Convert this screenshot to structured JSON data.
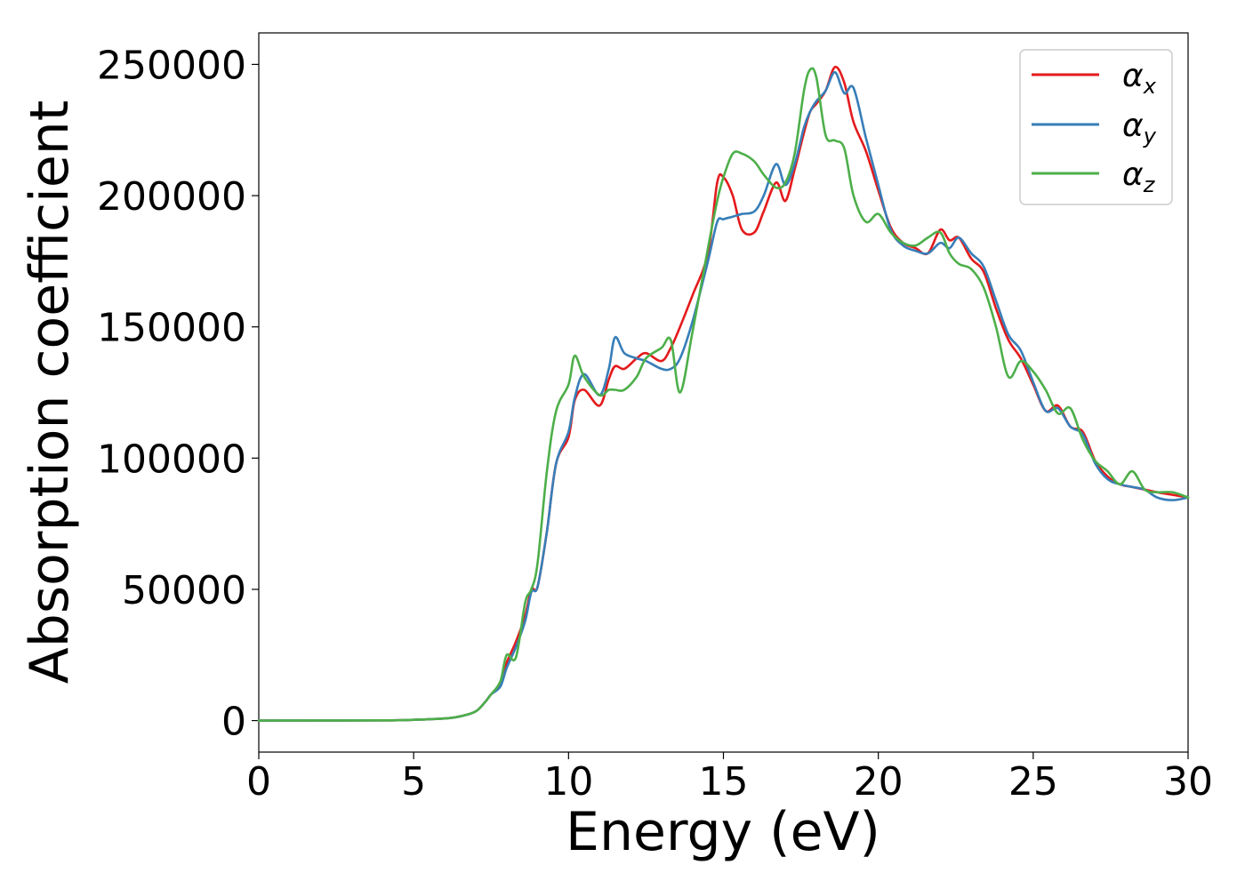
{
  "chart_data": {
    "type": "line",
    "xlabel": "Energy (eV)",
    "ylabel": "Absorption coefficient",
    "xlim": [
      0,
      30
    ],
    "ylim": [
      -12000,
      262000
    ],
    "xticks": [
      "0",
      "5",
      "10",
      "15",
      "20",
      "25",
      "30"
    ],
    "yticks": [
      "0",
      "50000",
      "100000",
      "150000",
      "200000",
      "250000"
    ],
    "grid": false,
    "legend_position": "top-right",
    "x": [
      0,
      4,
      5,
      6,
      6.5,
      7,
      7.3,
      7.5,
      7.8,
      8,
      8.3,
      8.6,
      8.8,
      9,
      9.3,
      9.6,
      10,
      10.2,
      10.5,
      11,
      11.3,
      11.5,
      11.8,
      12.2,
      12.5,
      13,
      13.3,
      13.6,
      14,
      14.5,
      14.8,
      15,
      15.3,
      15.6,
      16,
      16.3,
      16.7,
      17,
      17.3,
      17.6,
      17.8,
      18,
      18.3,
      18.6,
      18.9,
      19.2,
      19.6,
      20,
      20.4,
      20.8,
      21.2,
      21.6,
      22,
      22.3,
      22.6,
      23,
      23.4,
      23.8,
      24.2,
      24.6,
      25,
      25.4,
      25.8,
      26.2,
      26.6,
      27,
      27.4,
      27.8,
      28.2,
      28.6,
      29,
      29.5,
      30
    ],
    "series": [
      {
        "name": "α_x",
        "color": "#e41a1c",
        "values": [
          0,
          100,
          300,
          800,
          1600,
          3500,
          7000,
          10000,
          14000,
          22000,
          30000,
          40000,
          50000,
          51000,
          72000,
          98000,
          108000,
          122000,
          126000,
          120000,
          130000,
          135000,
          134000,
          138000,
          140000,
          137000,
          142000,
          150000,
          162000,
          178000,
          205000,
          207000,
          200000,
          187000,
          186000,
          194000,
          205000,
          198000,
          210000,
          224000,
          232000,
          235000,
          240000,
          249000,
          243000,
          228000,
          217000,
          202000,
          188000,
          182000,
          180000,
          178000,
          187000,
          183000,
          184000,
          176000,
          171000,
          157000,
          145000,
          138000,
          128000,
          118000,
          120000,
          112000,
          110000,
          99000,
          93000,
          90000,
          89000,
          88000,
          87000,
          86000,
          85000
        ]
      },
      {
        "name": "α_y",
        "color": "#377eb8",
        "values": [
          0,
          100,
          300,
          800,
          1600,
          3500,
          7000,
          10000,
          13000,
          20000,
          28000,
          38000,
          49000,
          51000,
          72000,
          98000,
          110000,
          123000,
          132000,
          124000,
          134000,
          146000,
          140000,
          138000,
          137000,
          134000,
          134000,
          138000,
          152000,
          175000,
          190000,
          191000,
          192000,
          193000,
          194000,
          200000,
          212000,
          204000,
          212000,
          226000,
          232000,
          236000,
          240000,
          247000,
          239000,
          241000,
          222000,
          204000,
          187000,
          181000,
          179000,
          178000,
          182000,
          180000,
          184000,
          178000,
          173000,
          160000,
          147000,
          141000,
          129000,
          118000,
          119000,
          112000,
          109000,
          98000,
          92000,
          90000,
          89000,
          88000,
          85000,
          84000,
          85000
        ]
      },
      {
        "name": "α_z",
        "color": "#4daf4a",
        "values": [
          0,
          100,
          300,
          800,
          1600,
          3500,
          7000,
          10000,
          15000,
          25000,
          24000,
          45000,
          50000,
          60000,
          95000,
          118000,
          128000,
          139000,
          131000,
          124000,
          126000,
          126000,
          126000,
          131000,
          138000,
          142000,
          145000,
          125000,
          148000,
          180000,
          198000,
          207000,
          216000,
          216000,
          213000,
          208000,
          203000,
          205000,
          216000,
          240000,
          248000,
          245000,
          223000,
          221000,
          218000,
          200000,
          190000,
          193000,
          186000,
          182000,
          181000,
          184000,
          186000,
          178000,
          174000,
          172000,
          165000,
          150000,
          131000,
          137000,
          133000,
          126000,
          117000,
          119000,
          107000,
          99000,
          95000,
          90000,
          95000,
          88000,
          87000,
          87000,
          85000
        ]
      }
    ]
  },
  "legend": {
    "base": "α",
    "subs": [
      "x",
      "y",
      "z"
    ]
  }
}
